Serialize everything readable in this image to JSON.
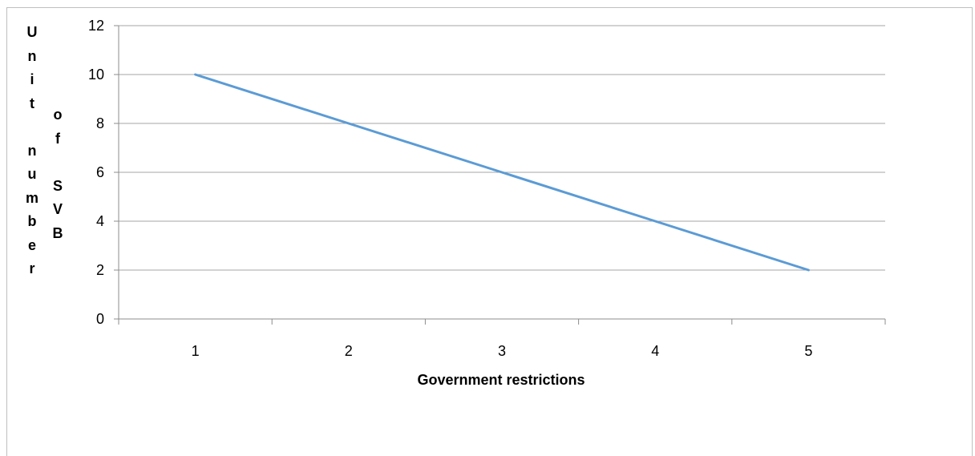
{
  "chart_data": {
    "type": "line",
    "title": "",
    "xlabel": "Government restrictions",
    "ylabel": "Unit number of SVB",
    "ylabel_columns": [
      "Unit number",
      "of SVB"
    ],
    "categories": [
      "1",
      "2",
      "3",
      "4",
      "5"
    ],
    "x": [
      1,
      2,
      3,
      4,
      5
    ],
    "series": [
      {
        "name": "",
        "values": [
          10,
          8,
          6,
          4,
          2
        ]
      }
    ],
    "ylim": [
      0,
      12
    ],
    "yticks": [
      0,
      2,
      4,
      6,
      8,
      10,
      12
    ],
    "grid": true,
    "legend": "none",
    "line_color": "#5B9BD5",
    "grid_color": "#a6a6a6"
  }
}
